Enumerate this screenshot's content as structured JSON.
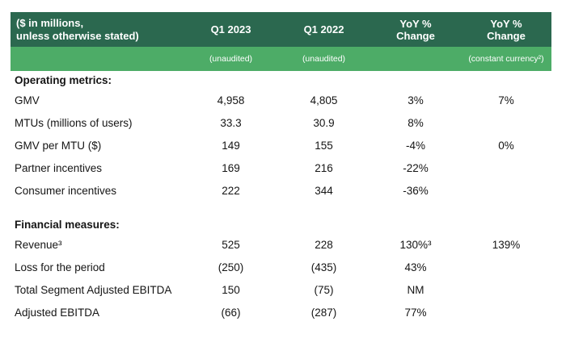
{
  "colors": {
    "header_bg": "#2B684F",
    "subheader_bg": "#4DAC67",
    "text": "#151515",
    "header_text": "#FFFFFF"
  },
  "table": {
    "header": {
      "row_label": "($ in millions,\nunless otherwise stated)",
      "columns": [
        "Q1 2023",
        "Q1 2022",
        "YoY %\nChange",
        "YoY %\nChange"
      ]
    },
    "subheader": {
      "columns": [
        "(unaudited)",
        "(unaudited)",
        "",
        "(constant currency²)"
      ]
    },
    "sections": [
      {
        "title": "Operating metrics:",
        "rows": [
          {
            "label": "GMV",
            "q1_2023": "4,958",
            "q1_2022": "4,805",
            "yoy": "3%",
            "yoy_cc": "7%"
          },
          {
            "label": "MTUs (millions of users)",
            "q1_2023": "33.3",
            "q1_2022": "30.9",
            "yoy": "8%",
            "yoy_cc": ""
          },
          {
            "label": "GMV per MTU ($)",
            "q1_2023": "149",
            "q1_2022": "155",
            "yoy": "-4%",
            "yoy_cc": "0%"
          },
          {
            "label": "Partner incentives",
            "q1_2023": "169",
            "q1_2022": "216",
            "yoy": "-22%",
            "yoy_cc": ""
          },
          {
            "label": "Consumer incentives",
            "q1_2023": "222",
            "q1_2022": "344",
            "yoy": "-36%",
            "yoy_cc": ""
          }
        ]
      },
      {
        "title": "Financial measures:",
        "rows": [
          {
            "label": "Revenue³",
            "q1_2023": "525",
            "q1_2022": "228",
            "yoy": "130%³",
            "yoy_cc": "139%"
          },
          {
            "label": "Loss for the period",
            "q1_2023": "(250)",
            "q1_2022": "(435)",
            "yoy": "43%",
            "yoy_cc": ""
          },
          {
            "label": "Total Segment Adjusted EBITDA",
            "q1_2023": "150",
            "q1_2022": "(75)",
            "yoy": "NM",
            "yoy_cc": ""
          },
          {
            "label": "Adjusted EBITDA",
            "q1_2023": "(66)",
            "q1_2022": "(287)",
            "yoy": "77%",
            "yoy_cc": ""
          }
        ]
      }
    ]
  }
}
